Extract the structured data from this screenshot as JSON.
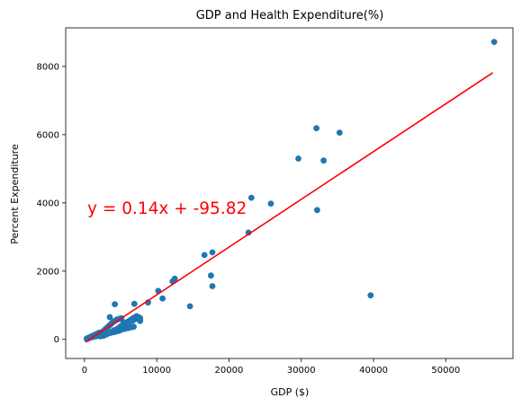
{
  "chart_data": {
    "type": "scatter",
    "title": "GDP and Health Expenditure(%)",
    "xlabel": "GDP ($)",
    "ylabel": "Percent Expenditure",
    "xlim": [
      -2600,
      59300
    ],
    "ylim": [
      -560,
      9130
    ],
    "xticks": [
      0,
      10000,
      20000,
      30000,
      40000,
      50000
    ],
    "yticks": [
      0,
      2000,
      4000,
      6000,
      8000
    ],
    "grid": false,
    "points_color": "#1f77b4",
    "line_color": "#ff0000",
    "annotation": "y = 0.14x + -95.82",
    "regression": {
      "slope": 0.14,
      "intercept": -95.82,
      "x_range": [
        100,
        56500
      ]
    },
    "series": [
      {
        "points": [
          [
            300,
            20
          ],
          [
            500,
            40
          ],
          [
            700,
            60
          ],
          [
            900,
            80
          ],
          [
            1100,
            100
          ],
          [
            1300,
            120
          ],
          [
            1500,
            140
          ],
          [
            1700,
            160
          ],
          [
            1900,
            180
          ],
          [
            2100,
            200
          ],
          [
            2300,
            160
          ],
          [
            2500,
            220
          ],
          [
            2700,
            260
          ],
          [
            2900,
            300
          ],
          [
            3100,
            340
          ],
          [
            3300,
            380
          ],
          [
            3500,
            420
          ],
          [
            3700,
            460
          ],
          [
            3900,
            500
          ],
          [
            4200,
            540
          ],
          [
            4500,
            580
          ],
          [
            4800,
            600
          ],
          [
            5100,
            620
          ],
          [
            5400,
            500
          ],
          [
            5700,
            480
          ],
          [
            6000,
            520
          ],
          [
            6300,
            560
          ],
          [
            6600,
            600
          ],
          [
            6900,
            640
          ],
          [
            7200,
            680
          ],
          [
            400,
            10
          ],
          [
            800,
            50
          ],
          [
            1200,
            70
          ],
          [
            1600,
            90
          ],
          [
            2000,
            110
          ],
          [
            2400,
            130
          ],
          [
            2800,
            150
          ],
          [
            3200,
            170
          ],
          [
            3600,
            190
          ],
          [
            4000,
            210
          ],
          [
            4400,
            230
          ],
          [
            4800,
            250
          ],
          [
            5200,
            290
          ],
          [
            5600,
            310
          ],
          [
            6000,
            330
          ],
          [
            6400,
            350
          ],
          [
            6800,
            370
          ],
          [
            2200,
            90
          ],
          [
            2600,
            100
          ],
          [
            3000,
            140
          ],
          [
            3400,
            180
          ],
          [
            3800,
            230
          ],
          [
            4100,
            270
          ],
          [
            4600,
            320
          ],
          [
            5000,
            380
          ],
          [
            5300,
            420
          ],
          [
            5800,
            450
          ],
          [
            6200,
            500
          ],
          [
            6700,
            550
          ],
          [
            7100,
            600
          ],
          [
            7500,
            650
          ],
          [
            3500,
            650
          ],
          [
            4200,
            1030
          ],
          [
            6900,
            1040
          ],
          [
            7700,
            620
          ],
          [
            7700,
            540
          ],
          [
            8800,
            1080
          ],
          [
            10200,
            1420
          ],
          [
            10800,
            1200
          ],
          [
            12200,
            1700
          ],
          [
            12500,
            1780
          ],
          [
            14600,
            970
          ],
          [
            16600,
            2470
          ],
          [
            17500,
            1870
          ],
          [
            17700,
            2550
          ],
          [
            17700,
            1560
          ],
          [
            22700,
            3130
          ],
          [
            23100,
            4150
          ],
          [
            25800,
            3980
          ],
          [
            29600,
            5300
          ],
          [
            32100,
            6190
          ],
          [
            32200,
            3790
          ],
          [
            33100,
            5240
          ],
          [
            35300,
            6060
          ],
          [
            39600,
            1290
          ],
          [
            56700,
            8720
          ]
        ]
      }
    ]
  }
}
